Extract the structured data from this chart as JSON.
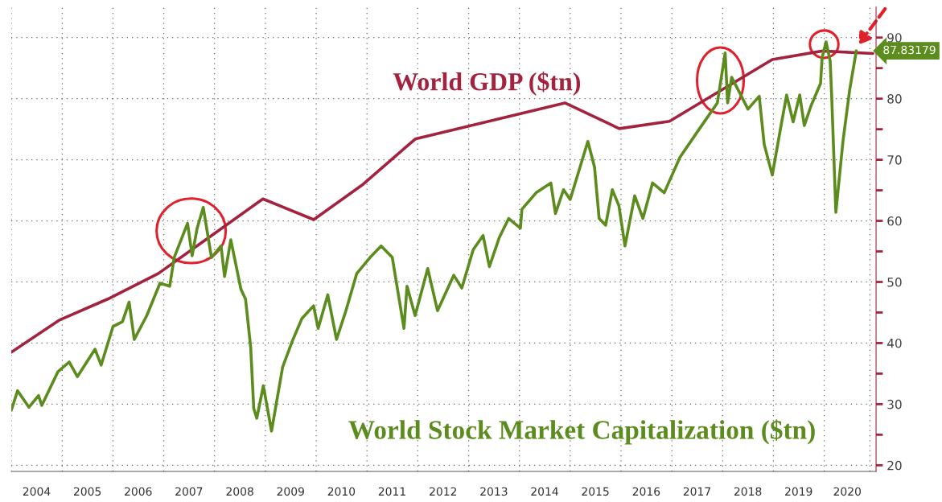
{
  "chart_data": {
    "type": "line",
    "series": [
      {
        "name": "World GDP ($tn)",
        "color": "#a3233f",
        "x": [
          "2004-01-01",
          "2004-12-15",
          "2005-11-24",
          "2006-11-24",
          "2008-12-14",
          "2009-12-14",
          "2010-12-05",
          "2011-12-14",
          "2014-11-24",
          "2015-12-20",
          "2016-12-15",
          "2018-12-24",
          "2019-12-17",
          "2020-12-16"
        ],
        "values": [
          38.5,
          43.8,
          47.2,
          51.4,
          63.6,
          60.2,
          66.0,
          73.4,
          79.3,
          75.1,
          76.3,
          86.4,
          87.8,
          87.4
        ]
      },
      {
        "name": "World Stock Market Capitalization ($tn)",
        "color": "#5b8c1d",
        "x": [
          "2004-01-01",
          "2004-02-15",
          "2004-05-07",
          "2004-07-15",
          "2004-08-07",
          "2004-12-01",
          "2005-02-20",
          "2005-04-20",
          "2005-08-25",
          "2005-10-08",
          "2006-01-01",
          "2006-03-10",
          "2006-04-27",
          "2006-06-03",
          "2006-09-01",
          "2006-12-05",
          "2007-02-13",
          "2007-03-17",
          "2007-06-21",
          "2007-07-24",
          "2007-08-29",
          "2007-10-12",
          "2007-12-10",
          "2008-02-17",
          "2008-03-13",
          "2008-04-27",
          "2008-07-09",
          "2008-08-11",
          "2008-09-17",
          "2008-10-09",
          "2008-10-31",
          "2008-12-17",
          "2009-02-14",
          "2009-05-05",
          "2009-07-13",
          "2009-09-20",
          "2009-12-13",
          "2010-01-15",
          "2010-03-25",
          "2010-05-27",
          "2010-07-31",
          "2010-10-20",
          "2011-01-23",
          "2011-04-13",
          "2011-07-02",
          "2011-09-24",
          "2011-10-16",
          "2011-12-13",
          "2012-03-13",
          "2012-05-22",
          "2012-09-16",
          "2012-11-13",
          "2013-02-03",
          "2013-04-15",
          "2013-05-30",
          "2013-08-08",
          "2013-10-16",
          "2014-01-08",
          "2014-01-19",
          "2014-05-01",
          "2014-08-15",
          "2014-09-17",
          "2014-11-14",
          "2015-01-01",
          "2015-05-08",
          "2015-06-25",
          "2015-07-28",
          "2015-09-13",
          "2015-10-31",
          "2015-12-17",
          "2016-01-30",
          "2016-04-09",
          "2016-06-07",
          "2016-08-15",
          "2016-11-07",
          "2017-02-28",
          "2017-07-19",
          "2017-11-24",
          "2018-01-19",
          "2018-02-06",
          "2018-03-07",
          "2018-05-05",
          "2018-07-02",
          "2018-09-21",
          "2018-10-27",
          "2018-12-24",
          "2019-02-21",
          "2019-04-06",
          "2019-05-23",
          "2019-07-09",
          "2019-08-11",
          "2019-09-28",
          "2019-12-06",
          "2019-12-17",
          "2020-01-15",
          "2020-02-13",
          "2020-02-24",
          "2020-03-25",
          "2020-05-15",
          "2020-07-02",
          "2020-08-19"
        ],
        "values": [
          29.0,
          32.2,
          29.5,
          31.4,
          29.8,
          35.3,
          36.9,
          34.5,
          39.0,
          36.4,
          42.7,
          43.5,
          46.7,
          40.6,
          44.5,
          49.8,
          49.3,
          54.0,
          59.6,
          54.3,
          58.8,
          62.2,
          54.0,
          55.9,
          50.9,
          56.9,
          48.8,
          47.2,
          39.3,
          29.3,
          27.7,
          33.0,
          25.6,
          36.1,
          40.3,
          44.0,
          46.1,
          42.4,
          47.9,
          40.6,
          45.1,
          51.4,
          54.0,
          55.9,
          54.0,
          42.4,
          49.3,
          44.5,
          52.2,
          45.3,
          51.1,
          49.0,
          55.3,
          57.6,
          52.5,
          57.2,
          60.4,
          58.8,
          61.9,
          64.6,
          66.2,
          61.2,
          65.1,
          63.5,
          73.0,
          68.8,
          60.4,
          59.3,
          65.1,
          62.5,
          55.9,
          64.1,
          60.4,
          66.2,
          64.6,
          70.4,
          75.1,
          79.3,
          87.5,
          79.3,
          83.5,
          80.9,
          78.3,
          80.4,
          72.5,
          67.5,
          75.1,
          80.6,
          76.2,
          80.6,
          75.6,
          78.8,
          82.5,
          86.7,
          89.3,
          86.2,
          80.4,
          61.4,
          73.0,
          81.4,
          87.83179
        ]
      }
    ],
    "xlim": [
      "2004-01-01",
      "2021-01-08"
    ],
    "xticks": [
      {
        "value": "2004-01-01",
        "label": null
      },
      {
        "value": "2004-07-01",
        "label": "2004"
      },
      {
        "value": "2005-01-01",
        "label": null
      },
      {
        "value": "2005-07-01",
        "label": "2005"
      },
      {
        "value": "2006-01-01",
        "label": null
      },
      {
        "value": "2006-07-01",
        "label": "2006"
      },
      {
        "value": "2007-01-01",
        "label": null
      },
      {
        "value": "2007-07-01",
        "label": "2007"
      },
      {
        "value": "2008-01-01",
        "label": null
      },
      {
        "value": "2008-07-01",
        "label": "2008"
      },
      {
        "value": "2009-01-01",
        "label": null
      },
      {
        "value": "2009-07-01",
        "label": "2009"
      },
      {
        "value": "2010-01-01",
        "label": null
      },
      {
        "value": "2010-07-01",
        "label": "2010"
      },
      {
        "value": "2011-01-01",
        "label": null
      },
      {
        "value": "2011-07-01",
        "label": "2011"
      },
      {
        "value": "2012-01-01",
        "label": null
      },
      {
        "value": "2012-07-01",
        "label": "2012"
      },
      {
        "value": "2013-01-01",
        "label": null
      },
      {
        "value": "2013-07-01",
        "label": "2013"
      },
      {
        "value": "2014-01-01",
        "label": null
      },
      {
        "value": "2014-07-01",
        "label": "2014"
      },
      {
        "value": "2015-01-01",
        "label": null
      },
      {
        "value": "2015-07-01",
        "label": "2015"
      },
      {
        "value": "2016-01-01",
        "label": null
      },
      {
        "value": "2016-07-01",
        "label": "2016"
      },
      {
        "value": "2017-01-01",
        "label": null
      },
      {
        "value": "2017-07-01",
        "label": "2017"
      },
      {
        "value": "2018-01-01",
        "label": null
      },
      {
        "value": "2018-07-01",
        "label": "2018"
      },
      {
        "value": "2019-01-01",
        "label": null
      },
      {
        "value": "2019-07-01",
        "label": "2019"
      },
      {
        "value": "2020-01-01",
        "label": null
      },
      {
        "value": "2020-06-15",
        "label": "2020"
      },
      {
        "value": "2020-11-25",
        "label": null
      }
    ],
    "ylim": [
      19,
      95
    ],
    "yticks": [
      20,
      {
        "value": 25,
        "label": null
      },
      30,
      {
        "value": 35,
        "label": null
      },
      40,
      {
        "value": 45,
        "label": null
      },
      50,
      {
        "value": 55,
        "label": null
      },
      60,
      {
        "value": 65,
        "label": null
      },
      70,
      {
        "value": 75,
        "label": null
      },
      80,
      {
        "value": 85,
        "label": null
      },
      90
    ],
    "grid": true,
    "line_style": "solid",
    "marker": "none",
    "annotations": [
      "87.83179"
    ]
  }
}
